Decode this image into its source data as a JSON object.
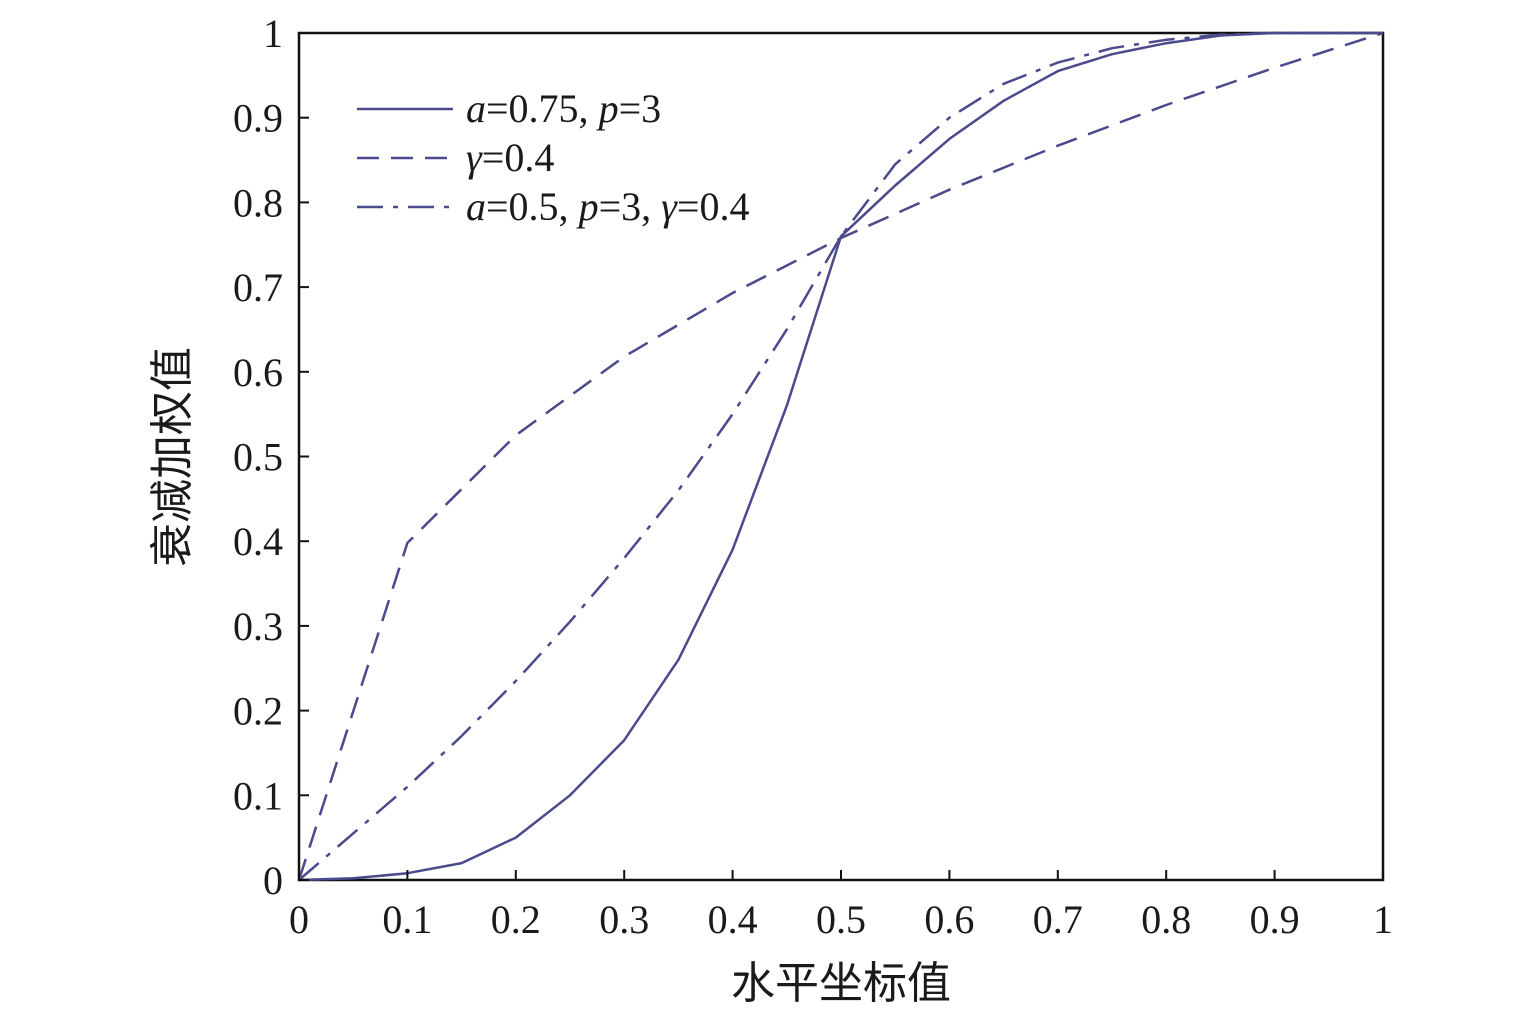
{
  "chart_data": {
    "type": "line",
    "title": "",
    "xlabel": "水平坐标值",
    "ylabel": "衰减加权值",
    "xlim": [
      0,
      1
    ],
    "ylim": [
      0,
      1
    ],
    "xticks": [
      "0",
      "0.1",
      "0.2",
      "0.3",
      "0.4",
      "0.5",
      "0.6",
      "0.7",
      "0.8",
      "0.9",
      "1"
    ],
    "yticks": [
      "0",
      "0.1",
      "0.2",
      "0.3",
      "0.4",
      "0.5",
      "0.6",
      "0.7",
      "0.8",
      "0.9",
      "1"
    ],
    "grid": false,
    "legend_position": "top-left",
    "line_color": "#4a4a8c",
    "series": [
      {
        "name": "a=0.75, p=3",
        "legend_parts": [
          {
            "text": "a",
            "italic": true
          },
          {
            "text": "=0.75, ",
            "italic": false
          },
          {
            "text": "p",
            "italic": true
          },
          {
            "text": "=3",
            "italic": false
          }
        ],
        "style": "solid",
        "x": [
          0,
          0.05,
          0.1,
          0.15,
          0.2,
          0.25,
          0.3,
          0.35,
          0.4,
          0.45,
          0.5,
          0.55,
          0.6,
          0.65,
          0.7,
          0.75,
          0.8,
          0.85,
          0.9,
          0.95,
          1
        ],
        "y": [
          0,
          0.002,
          0.008,
          0.02,
          0.05,
          0.1,
          0.165,
          0.26,
          0.39,
          0.56,
          0.76,
          0.82,
          0.875,
          0.92,
          0.955,
          0.975,
          0.988,
          0.997,
          1,
          1,
          1
        ]
      },
      {
        "name": "γ=0.4",
        "legend_parts": [
          {
            "text": "γ",
            "italic": true
          },
          {
            "text": "=0.4",
            "italic": false
          }
        ],
        "style": "dashed",
        "x": [
          0,
          0.1,
          0.2,
          0.3,
          0.4,
          0.5,
          0.6,
          0.7,
          0.8,
          0.9,
          1
        ],
        "y": [
          0,
          0.398,
          0.525,
          0.618,
          0.693,
          0.758,
          0.815,
          0.867,
          0.915,
          0.959,
          1
        ]
      },
      {
        "name": "a=0.5, p=3, γ=0.4",
        "legend_parts": [
          {
            "text": "a",
            "italic": true
          },
          {
            "text": "=0.5, ",
            "italic": false
          },
          {
            "text": "p",
            "italic": true
          },
          {
            "text": "=3, ",
            "italic": false
          },
          {
            "text": "γ",
            "italic": true
          },
          {
            "text": "=0.4",
            "italic": false
          }
        ],
        "style": "dashdot",
        "x": [
          0,
          0.05,
          0.1,
          0.15,
          0.2,
          0.25,
          0.3,
          0.35,
          0.4,
          0.45,
          0.5,
          0.55,
          0.6,
          0.65,
          0.7,
          0.75,
          0.8,
          0.85,
          0.9,
          0.95,
          1
        ],
        "y": [
          0,
          0.055,
          0.11,
          0.17,
          0.235,
          0.305,
          0.38,
          0.46,
          0.55,
          0.65,
          0.76,
          0.845,
          0.9,
          0.94,
          0.965,
          0.982,
          0.992,
          0.998,
          1,
          1,
          1
        ]
      }
    ]
  }
}
